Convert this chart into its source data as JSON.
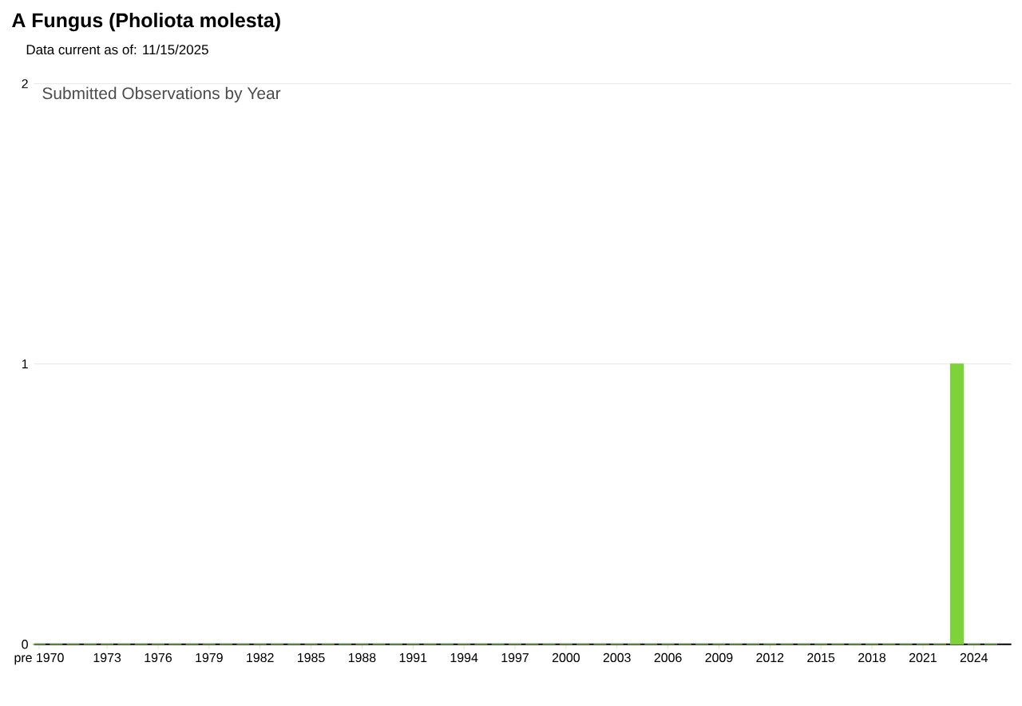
{
  "chart_data": {
    "type": "bar",
    "title": "A Fungus   (Pholiota molesta)",
    "subtitle": "Data current as of: 11/15/2025",
    "annotations": [
      "Submitted Observations by Year"
    ],
    "categories": [
      "pre 1970",
      null,
      null,
      null,
      "1973",
      null,
      null,
      "1976",
      null,
      null,
      "1979",
      null,
      null,
      "1982",
      null,
      null,
      "1985",
      null,
      null,
      "1988",
      null,
      null,
      "1991",
      null,
      null,
      "1994",
      null,
      null,
      "1997",
      null,
      null,
      "2000",
      null,
      null,
      "2003",
      null,
      null,
      "2006",
      null,
      null,
      "2009",
      null,
      null,
      "2012",
      null,
      null,
      "2015",
      null,
      null,
      "2018",
      null,
      null,
      "2021",
      null,
      null,
      "2024",
      null
    ],
    "values": [
      0,
      0,
      0,
      0,
      0,
      0,
      0,
      0,
      0,
      0,
      0,
      0,
      0,
      0,
      0,
      0,
      0,
      0,
      0,
      0,
      0,
      0,
      0,
      0,
      0,
      0,
      0,
      0,
      0,
      0,
      0,
      0,
      0,
      0,
      0,
      0,
      0,
      0,
      0,
      0,
      0,
      0,
      0,
      0,
      0,
      0,
      0,
      0,
      0,
      0,
      0,
      0,
      0,
      0,
      1,
      0,
      0
    ],
    "color": "#7ed23a",
    "ylim": [
      0,
      2
    ],
    "yticks": [
      0,
      1,
      2
    ],
    "grid": "y"
  }
}
